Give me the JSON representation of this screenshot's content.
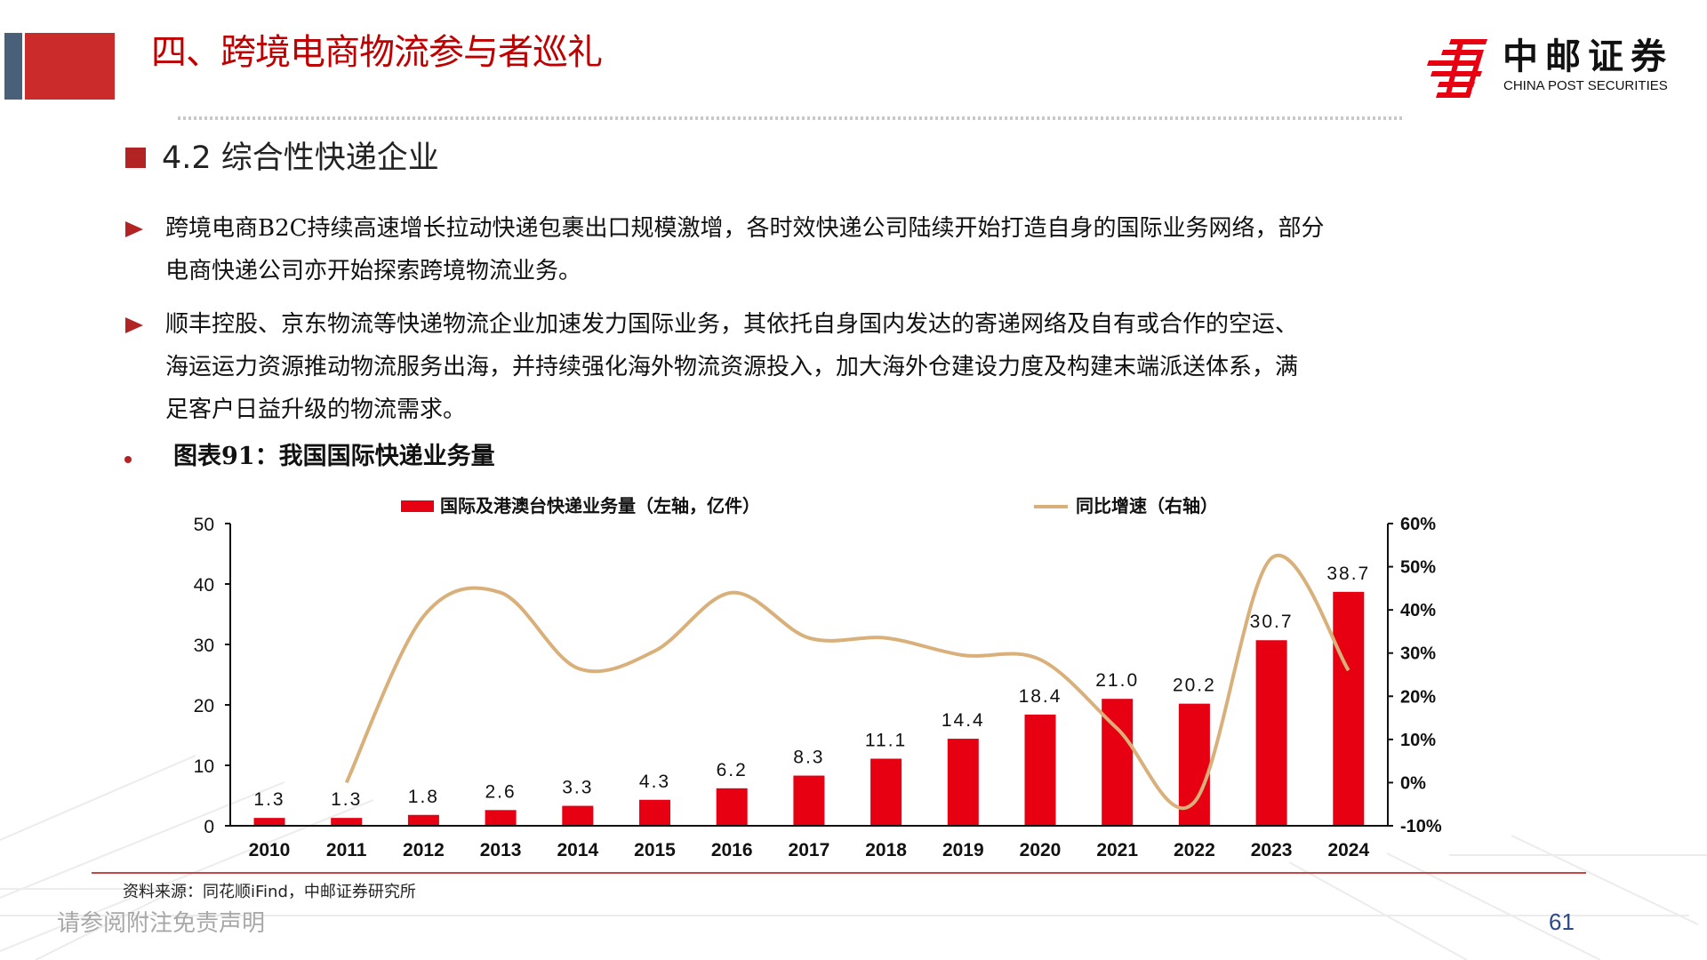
{
  "header": {
    "title": "四、跨境电商物流参与者巡礼",
    "logo_cn": "中邮证券",
    "logo_en": "CHINA POST SECURITIES"
  },
  "section": {
    "title": "4.2 综合性快递企业"
  },
  "bullets": [
    {
      "lines": [
        "跨境电商B2C持续高速增长拉动快递包裹出口规模激增，各时效快递公司陆续开始打造自身的国际业务网络，部分",
        "电商快递公司亦开始探索跨境物流业务。"
      ]
    },
    {
      "lines": [
        "顺丰控股、京东物流等快递物流企业加速发力国际业务，其依托自身国内发达的寄递网络及自有或合作的空运、",
        "海运运力资源推动物流服务出海，并持续强化海外物流资源投入，加大海外仓建设力度及构建末端派送体系，满",
        "足客户日益升级的物流需求。"
      ]
    }
  ],
  "figure": {
    "title": "图表91：我国国际快递业务量"
  },
  "colors": {
    "bar": "#e60012",
    "line": "#d9b07a",
    "accent": "#c00000"
  },
  "chart_data": {
    "type": "bar",
    "title": "图表91：我国国际快递业务量",
    "categories": [
      "2010",
      "2011",
      "2012",
      "2013",
      "2014",
      "2015",
      "2016",
      "2017",
      "2018",
      "2019",
      "2020",
      "2021",
      "2022",
      "2023",
      "2024"
    ],
    "series": [
      {
        "name": "国际及港澳台快递业务量（左轴，亿件）",
        "type": "bar",
        "axis": "left",
        "values": [
          1.3,
          1.3,
          1.8,
          2.6,
          3.3,
          4.3,
          6.2,
          8.3,
          11.1,
          14.4,
          18.4,
          21.0,
          20.2,
          30.7,
          38.7
        ],
        "labels": [
          "1.3",
          "1.3",
          "1.8",
          "2.6",
          "3.3",
          "4.3",
          "6.2",
          "8.3",
          "11.1",
          "14.4",
          "18.4",
          "21.0",
          "20.2",
          "30.7",
          "38.7"
        ]
      },
      {
        "name": "同比增速（右轴）",
        "type": "line",
        "axis": "right",
        "values": [
          null,
          0,
          38.5,
          44,
          26.5,
          30.5,
          44,
          33.5,
          33.5,
          29.5,
          28.5,
          12.5,
          -4.5,
          52,
          26
        ]
      }
    ],
    "left_axis": {
      "ylim": [
        0,
        50
      ],
      "ticks": [
        "0",
        "10",
        "20",
        "30",
        "40",
        "50"
      ]
    },
    "right_axis": {
      "ylim": [
        -10,
        60
      ],
      "ticks": [
        "-10%",
        "0%",
        "10%",
        "20%",
        "30%",
        "40%",
        "50%",
        "60%"
      ]
    },
    "legend_position": "top",
    "grid": false
  },
  "footer": {
    "source": "资料来源：同花顺iFind，中邮证券研究所",
    "disclaimer": "请参阅附注免责声明",
    "page": "61"
  }
}
